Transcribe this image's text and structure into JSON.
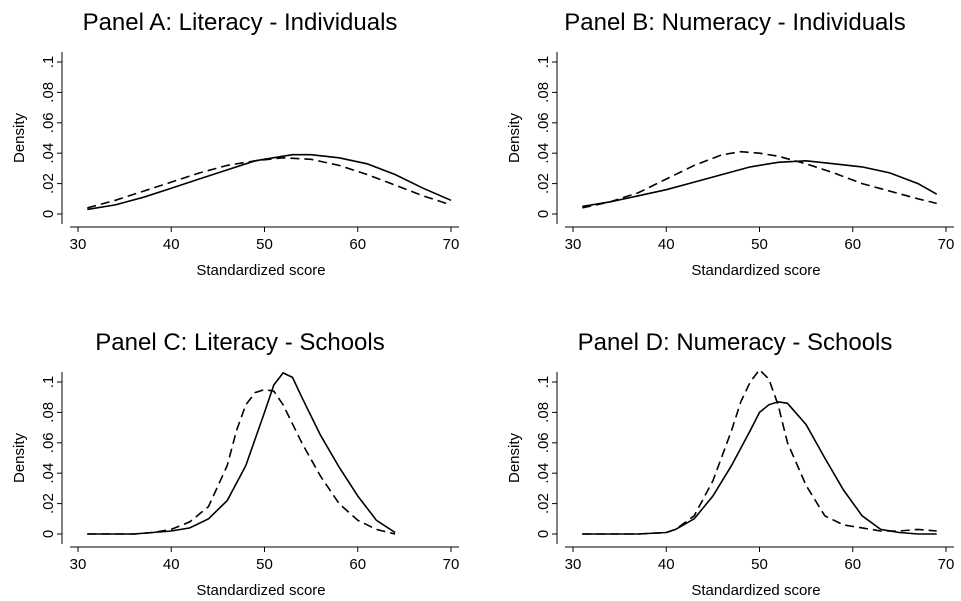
{
  "chart_data": [
    {
      "type": "line",
      "title": "Panel A: Literacy - Individuals",
      "xlabel": "Standardized score",
      "ylabel": "Density",
      "xlim": [
        30,
        70
      ],
      "ylim": [
        0,
        0.1
      ],
      "xticks": [
        "30",
        "40",
        "50",
        "60",
        "70"
      ],
      "xtick_values": [
        30,
        40,
        50,
        60,
        70
      ],
      "yticks": [
        "0",
        ".02",
        ".04",
        ".06",
        ".08",
        ".1"
      ],
      "ytick_values": [
        0,
        0.02,
        0.04,
        0.06,
        0.08,
        0.1
      ],
      "series": [
        {
          "style": "solid",
          "x": [
            31,
            34,
            37,
            40,
            43,
            46,
            49,
            52,
            53,
            55,
            58,
            61,
            64,
            67,
            70
          ],
          "y": [
            0.003,
            0.006,
            0.011,
            0.017,
            0.023,
            0.029,
            0.035,
            0.038,
            0.039,
            0.039,
            0.037,
            0.033,
            0.026,
            0.017,
            0.009
          ]
        },
        {
          "style": "dashed",
          "x": [
            31,
            34,
            37,
            40,
            43,
            46,
            49,
            52,
            55,
            58,
            61,
            64,
            67,
            70
          ],
          "y": [
            0.004,
            0.009,
            0.015,
            0.021,
            0.027,
            0.032,
            0.035,
            0.037,
            0.036,
            0.032,
            0.026,
            0.019,
            0.012,
            0.006
          ]
        }
      ]
    },
    {
      "type": "line",
      "title": "Panel B: Numeracy - Individuals",
      "xlabel": "Standardized score",
      "ylabel": "Density",
      "xlim": [
        30,
        70
      ],
      "ylim": [
        0,
        0.1
      ],
      "xticks": [
        "30",
        "40",
        "50",
        "60",
        "70"
      ],
      "xtick_values": [
        30,
        40,
        50,
        60,
        70
      ],
      "yticks": [
        "0",
        ".02",
        ".04",
        ".06",
        ".08",
        ".1"
      ],
      "ytick_values": [
        0,
        0.02,
        0.04,
        0.06,
        0.08,
        0.1
      ],
      "series": [
        {
          "style": "solid",
          "x": [
            31,
            34,
            37,
            40,
            43,
            46,
            49,
            52,
            55,
            58,
            61,
            64,
            67,
            69
          ],
          "y": [
            0.005,
            0.008,
            0.012,
            0.016,
            0.021,
            0.026,
            0.031,
            0.034,
            0.035,
            0.033,
            0.031,
            0.027,
            0.02,
            0.013
          ]
        },
        {
          "style": "dashed",
          "x": [
            31,
            34,
            37,
            40,
            43,
            46,
            48,
            50,
            52,
            55,
            58,
            61,
            64,
            67,
            69
          ],
          "y": [
            0.004,
            0.008,
            0.014,
            0.023,
            0.032,
            0.039,
            0.041,
            0.04,
            0.038,
            0.033,
            0.027,
            0.02,
            0.015,
            0.01,
            0.007
          ]
        }
      ]
    },
    {
      "type": "line",
      "title": "Panel C: Literacy - Schools",
      "xlabel": "Standardized score",
      "ylabel": "Density",
      "xlim": [
        30,
        70
      ],
      "ylim": [
        0,
        0.1
      ],
      "xticks": [
        "30",
        "40",
        "50",
        "60",
        "70"
      ],
      "xtick_values": [
        30,
        40,
        50,
        60,
        70
      ],
      "yticks": [
        "0",
        ".02",
        ".04",
        ".06",
        ".08",
        ".1"
      ],
      "ytick_values": [
        0,
        0.02,
        0.04,
        0.06,
        0.08,
        0.1
      ],
      "series": [
        {
          "style": "solid",
          "x": [
            31,
            34,
            36,
            38,
            40,
            42,
            44,
            46,
            48,
            50,
            51,
            52,
            53,
            54,
            56,
            58,
            60,
            62,
            64
          ],
          "y": [
            0,
            0,
            0,
            0.001,
            0.002,
            0.004,
            0.01,
            0.022,
            0.045,
            0.08,
            0.098,
            0.106,
            0.103,
            0.09,
            0.065,
            0.044,
            0.025,
            0.009,
            0.001
          ]
        },
        {
          "style": "dashed",
          "x": [
            31,
            34,
            36,
            38,
            40,
            42,
            44,
            46,
            47,
            48,
            49,
            50,
            51,
            52,
            54,
            56,
            58,
            60,
            62,
            64
          ],
          "y": [
            0,
            0,
            0,
            0.001,
            0.003,
            0.008,
            0.018,
            0.045,
            0.068,
            0.085,
            0.093,
            0.095,
            0.094,
            0.085,
            0.06,
            0.038,
            0.02,
            0.009,
            0.003,
            0
          ]
        }
      ]
    },
    {
      "type": "line",
      "title": "Panel D: Numeracy - Schools",
      "xlabel": "Standardized score",
      "ylabel": "Density",
      "xlim": [
        30,
        70
      ],
      "ylim": [
        0,
        0.1
      ],
      "xticks": [
        "30",
        "40",
        "50",
        "60",
        "70"
      ],
      "xtick_values": [
        30,
        40,
        50,
        60,
        70
      ],
      "yticks": [
        "0",
        ".02",
        ".04",
        ".06",
        ".08",
        ".1"
      ],
      "ytick_values": [
        0,
        0.02,
        0.04,
        0.06,
        0.08,
        0.1
      ],
      "series": [
        {
          "style": "solid",
          "x": [
            31,
            34,
            37,
            40,
            41,
            43,
            45,
            47,
            49,
            50,
            51,
            52,
            53,
            55,
            57,
            59,
            61,
            63,
            65,
            67,
            69
          ],
          "y": [
            0,
            0,
            0,
            0.001,
            0.003,
            0.01,
            0.025,
            0.045,
            0.068,
            0.08,
            0.085,
            0.087,
            0.086,
            0.072,
            0.05,
            0.029,
            0.012,
            0.003,
            0.001,
            0,
            0
          ]
        },
        {
          "style": "dashed",
          "x": [
            31,
            34,
            37,
            40,
            41,
            43,
            45,
            47,
            48,
            49,
            50,
            51,
            52,
            53,
            55,
            57,
            59,
            61,
            63,
            65,
            67,
            69
          ],
          "y": [
            0,
            0,
            0,
            0.001,
            0.003,
            0.012,
            0.035,
            0.068,
            0.087,
            0.1,
            0.108,
            0.102,
            0.085,
            0.06,
            0.032,
            0.012,
            0.006,
            0.004,
            0.002,
            0.002,
            0.003,
            0.002
          ]
        }
      ]
    }
  ]
}
